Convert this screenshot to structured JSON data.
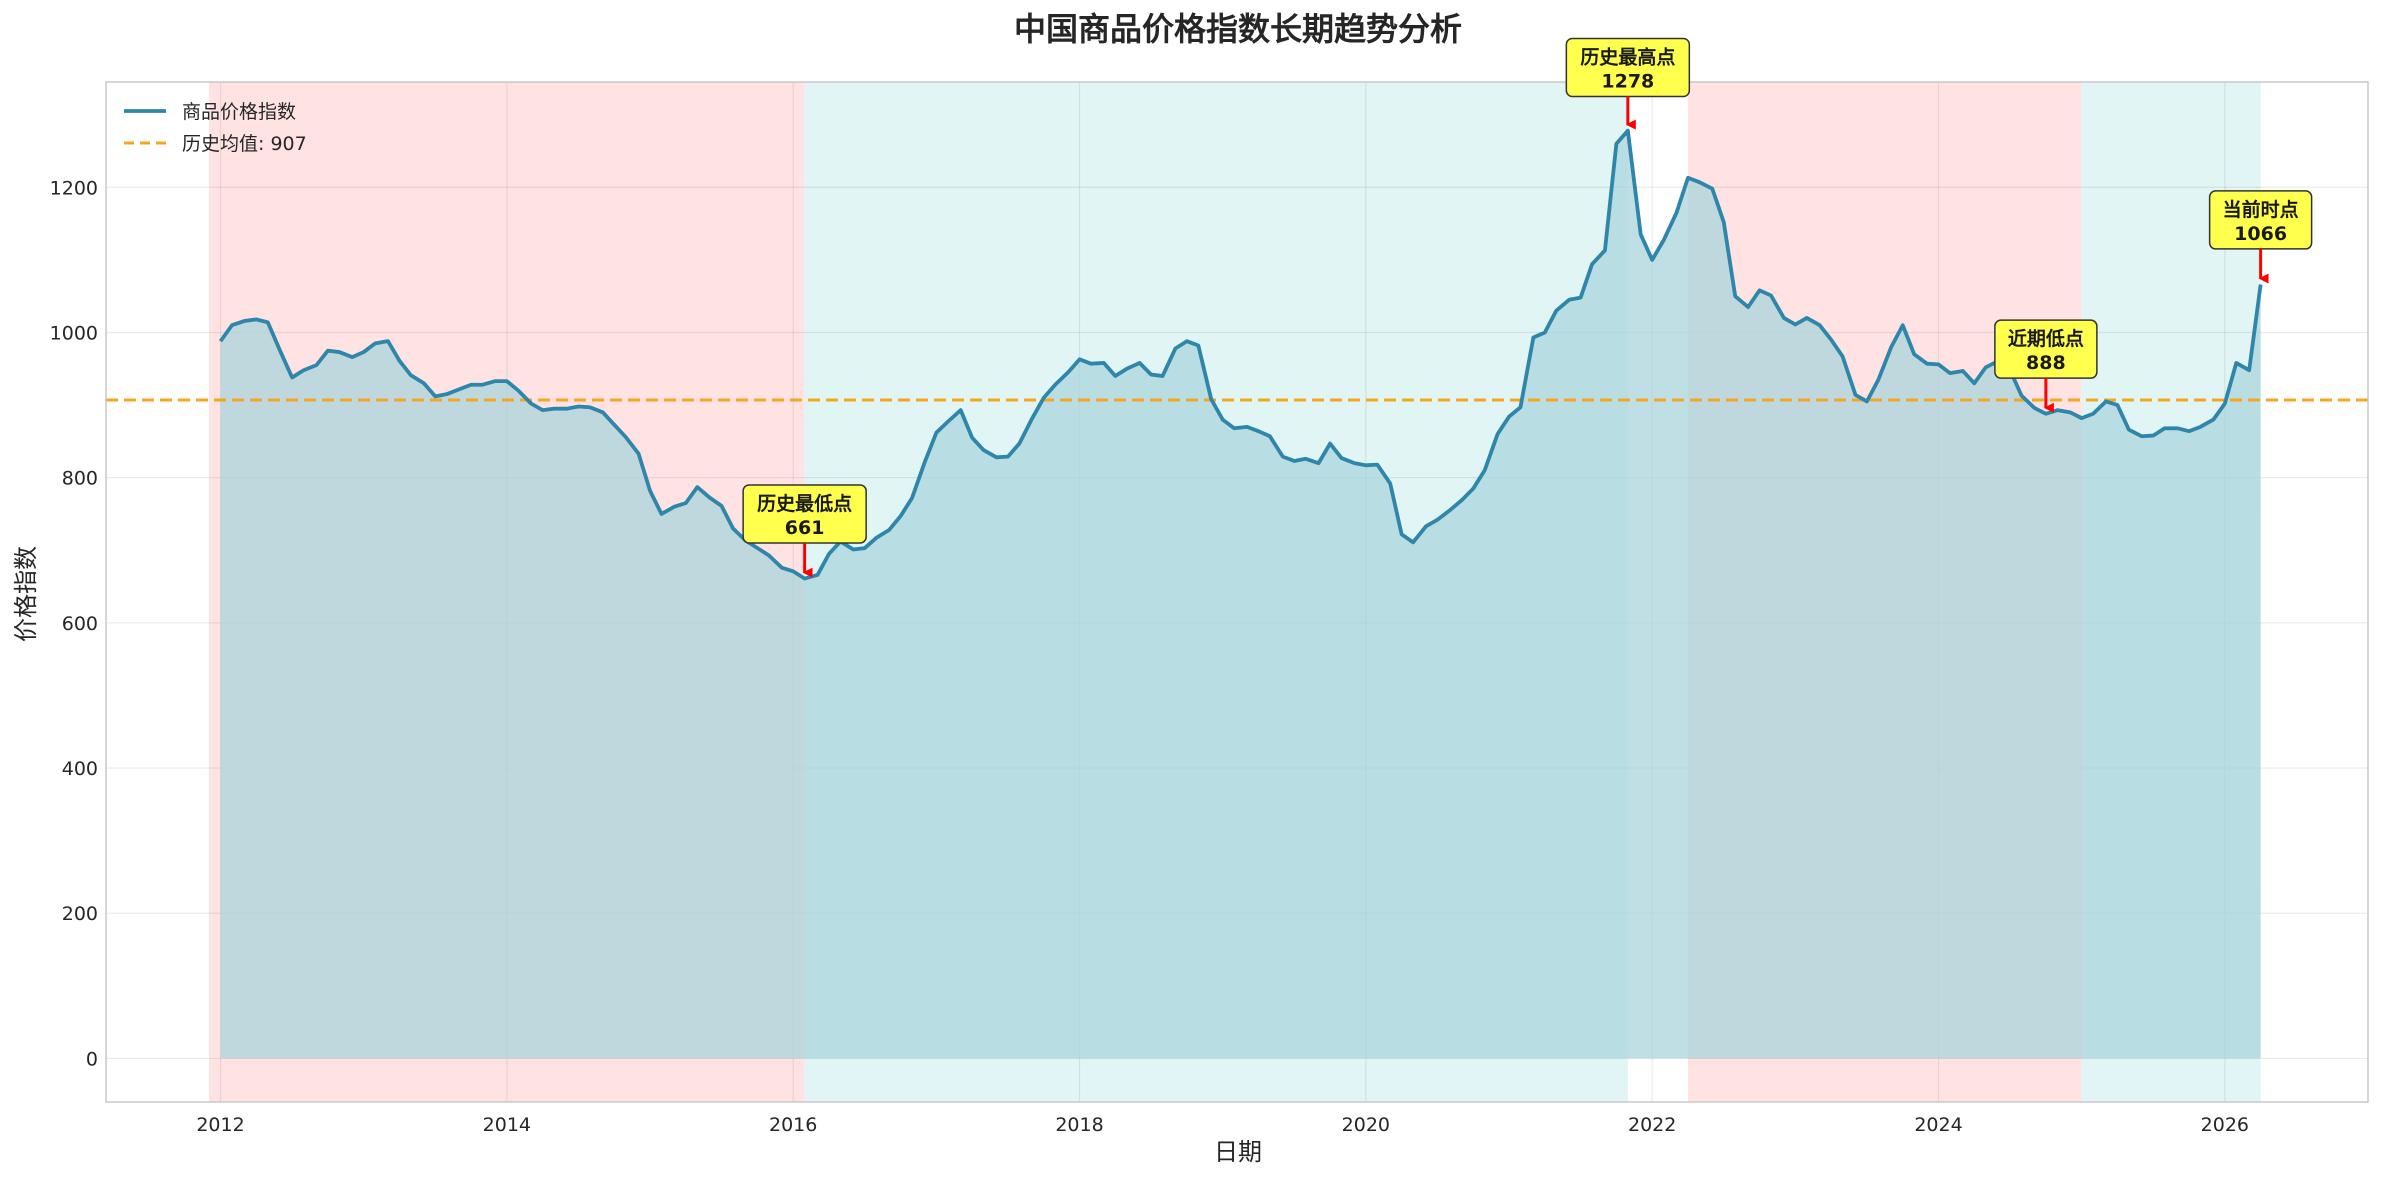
{
  "chart_data": {
    "type": "area",
    "title": "中国商品价格指数长期趋势分析",
    "xlabel": "日期",
    "ylabel": "价格指数",
    "xlim": [
      2011.2,
      2027.0
    ],
    "ylim": [
      -60,
      1345
    ],
    "x_ticks": [
      2012,
      2014,
      2016,
      2018,
      2020,
      2022,
      2024,
      2026
    ],
    "x_tick_labels": [
      "2012",
      "2014",
      "2016",
      "2018",
      "2020",
      "2022",
      "2024",
      "2026"
    ],
    "y_ticks": [
      0,
      200,
      400,
      600,
      800,
      1000,
      1200
    ],
    "y_tick_labels": [
      "0",
      "200",
      "400",
      "600",
      "800",
      "1000",
      "1200"
    ],
    "grid": true,
    "legend_position": "top-left",
    "colors": {
      "line": "#2e86ab",
      "fill": "#a9d4dc",
      "mean_line": "#f5a623",
      "shade_down": "#ffe3e3",
      "shade_up": "#e2f5f5",
      "annotation_bg": "#ffff4d",
      "arrow": "#ff0000"
    },
    "series": [
      {
        "name": "商品价格指数",
        "points": [
          [
            2012.0,
            988
          ],
          [
            2012.08,
            1010
          ],
          [
            2012.17,
            1016
          ],
          [
            2012.25,
            1018
          ],
          [
            2012.33,
            1014
          ],
          [
            2012.42,
            973
          ],
          [
            2012.5,
            938
          ],
          [
            2012.58,
            948
          ],
          [
            2012.67,
            955
          ],
          [
            2012.75,
            975
          ],
          [
            2012.83,
            973
          ],
          [
            2012.92,
            966
          ],
          [
            2013.0,
            973
          ],
          [
            2013.08,
            985
          ],
          [
            2013.17,
            988
          ],
          [
            2013.25,
            961
          ],
          [
            2013.33,
            941
          ],
          [
            2013.42,
            930
          ],
          [
            2013.5,
            912
          ],
          [
            2013.58,
            915
          ],
          [
            2013.67,
            922
          ],
          [
            2013.75,
            928
          ],
          [
            2013.83,
            928
          ],
          [
            2013.92,
            933
          ],
          [
            2014.0,
            933
          ],
          [
            2014.08,
            920
          ],
          [
            2014.17,
            902
          ],
          [
            2014.25,
            893
          ],
          [
            2014.33,
            895
          ],
          [
            2014.42,
            895
          ],
          [
            2014.5,
            898
          ],
          [
            2014.58,
            897
          ],
          [
            2014.67,
            890
          ],
          [
            2014.75,
            873
          ],
          [
            2014.83,
            856
          ],
          [
            2014.92,
            833
          ],
          [
            2015.0,
            782
          ],
          [
            2015.08,
            750
          ],
          [
            2015.17,
            760
          ],
          [
            2015.25,
            765
          ],
          [
            2015.33,
            787
          ],
          [
            2015.42,
            772
          ],
          [
            2015.5,
            761
          ],
          [
            2015.58,
            730
          ],
          [
            2015.67,
            713
          ],
          [
            2015.75,
            703
          ],
          [
            2015.83,
            693
          ],
          [
            2015.92,
            676
          ],
          [
            2016.0,
            671
          ],
          [
            2016.08,
            661
          ],
          [
            2016.17,
            666
          ],
          [
            2016.25,
            695
          ],
          [
            2016.33,
            712
          ],
          [
            2016.42,
            701
          ],
          [
            2016.5,
            703
          ],
          [
            2016.58,
            717
          ],
          [
            2016.67,
            728
          ],
          [
            2016.75,
            747
          ],
          [
            2016.83,
            772
          ],
          [
            2016.92,
            822
          ],
          [
            2017.0,
            862
          ],
          [
            2017.08,
            877
          ],
          [
            2017.17,
            893
          ],
          [
            2017.25,
            855
          ],
          [
            2017.33,
            838
          ],
          [
            2017.42,
            828
          ],
          [
            2017.5,
            829
          ],
          [
            2017.58,
            847
          ],
          [
            2017.67,
            882
          ],
          [
            2017.75,
            910
          ],
          [
            2017.83,
            928
          ],
          [
            2017.92,
            945
          ],
          [
            2018.0,
            963
          ],
          [
            2018.08,
            957
          ],
          [
            2018.17,
            958
          ],
          [
            2018.25,
            940
          ],
          [
            2018.33,
            950
          ],
          [
            2018.42,
            958
          ],
          [
            2018.5,
            942
          ],
          [
            2018.58,
            940
          ],
          [
            2018.67,
            978
          ],
          [
            2018.75,
            988
          ],
          [
            2018.83,
            982
          ],
          [
            2018.92,
            908
          ],
          [
            2019.0,
            880
          ],
          [
            2019.08,
            868
          ],
          [
            2019.17,
            870
          ],
          [
            2019.25,
            864
          ],
          [
            2019.33,
            857
          ],
          [
            2019.42,
            829
          ],
          [
            2019.5,
            823
          ],
          [
            2019.58,
            826
          ],
          [
            2019.67,
            820
          ],
          [
            2019.75,
            847
          ],
          [
            2019.83,
            827
          ],
          [
            2019.92,
            820
          ],
          [
            2020.0,
            817
          ],
          [
            2020.08,
            818
          ],
          [
            2020.17,
            792
          ],
          [
            2020.25,
            722
          ],
          [
            2020.33,
            711
          ],
          [
            2020.42,
            733
          ],
          [
            2020.5,
            742
          ],
          [
            2020.58,
            754
          ],
          [
            2020.67,
            769
          ],
          [
            2020.75,
            785
          ],
          [
            2020.83,
            810
          ],
          [
            2020.92,
            860
          ],
          [
            2021.0,
            884
          ],
          [
            2021.08,
            897
          ],
          [
            2021.17,
            993
          ],
          [
            2021.25,
            1000
          ],
          [
            2021.33,
            1030
          ],
          [
            2021.42,
            1045
          ],
          [
            2021.5,
            1048
          ],
          [
            2021.58,
            1094
          ],
          [
            2021.67,
            1113
          ],
          [
            2021.75,
            1260
          ],
          [
            2021.83,
            1278
          ],
          [
            2021.92,
            1135
          ],
          [
            2022.0,
            1100
          ],
          [
            2022.08,
            1127
          ],
          [
            2022.17,
            1165
          ],
          [
            2022.25,
            1213
          ],
          [
            2022.33,
            1207
          ],
          [
            2022.42,
            1198
          ],
          [
            2022.5,
            1152
          ],
          [
            2022.58,
            1050
          ],
          [
            2022.67,
            1035
          ],
          [
            2022.75,
            1058
          ],
          [
            2022.83,
            1051
          ],
          [
            2022.92,
            1020
          ],
          [
            2023.0,
            1011
          ],
          [
            2023.08,
            1020
          ],
          [
            2023.17,
            1010
          ],
          [
            2023.25,
            990
          ],
          [
            2023.33,
            967
          ],
          [
            2023.42,
            914
          ],
          [
            2023.5,
            905
          ],
          [
            2023.58,
            935
          ],
          [
            2023.67,
            980
          ],
          [
            2023.75,
            1010
          ],
          [
            2023.83,
            970
          ],
          [
            2023.92,
            957
          ],
          [
            2024.0,
            956
          ],
          [
            2024.08,
            944
          ],
          [
            2024.17,
            947
          ],
          [
            2024.25,
            930
          ],
          [
            2024.33,
            952
          ],
          [
            2024.42,
            961
          ],
          [
            2024.5,
            948
          ],
          [
            2024.58,
            913
          ],
          [
            2024.67,
            896
          ],
          [
            2024.75,
            888
          ],
          [
            2024.83,
            893
          ],
          [
            2024.92,
            890
          ],
          [
            2025.0,
            882
          ],
          [
            2025.08,
            888
          ],
          [
            2025.17,
            905
          ],
          [
            2025.25,
            900
          ],
          [
            2025.33,
            866
          ],
          [
            2025.42,
            857
          ],
          [
            2025.5,
            858
          ],
          [
            2025.58,
            868
          ],
          [
            2025.67,
            868
          ],
          [
            2025.75,
            864
          ],
          [
            2025.83,
            870
          ],
          [
            2025.92,
            880
          ],
          [
            2026.0,
            902
          ],
          [
            2026.08,
            958
          ],
          [
            2026.17,
            948
          ],
          [
            2026.25,
            1066
          ]
        ]
      }
    ],
    "mean_line": {
      "label": "历史均值: 907",
      "value": 907
    },
    "shaded_regions": [
      {
        "start": 2011.92,
        "end": 2016.08,
        "kind": "down"
      },
      {
        "start": 2016.08,
        "end": 2021.83,
        "kind": "up"
      },
      {
        "start": 2022.25,
        "end": 2025.0,
        "kind": "down"
      },
      {
        "start": 2025.0,
        "end": 2026.25,
        "kind": "up"
      }
    ],
    "annotations": [
      {
        "label": "历史最低点",
        "value": "661",
        "x": 2016.08,
        "y": 661,
        "text_y": 750
      },
      {
        "label": "历史最高点",
        "value": "1278",
        "x": 2021.83,
        "y": 1278,
        "text_y": 1365
      },
      {
        "label": "近期低点",
        "value": "888",
        "x": 2024.75,
        "y": 888,
        "text_y": 977
      },
      {
        "label": "当前时点",
        "value": "1066",
        "x": 2026.25,
        "y": 1066,
        "text_y": 1155
      }
    ]
  }
}
